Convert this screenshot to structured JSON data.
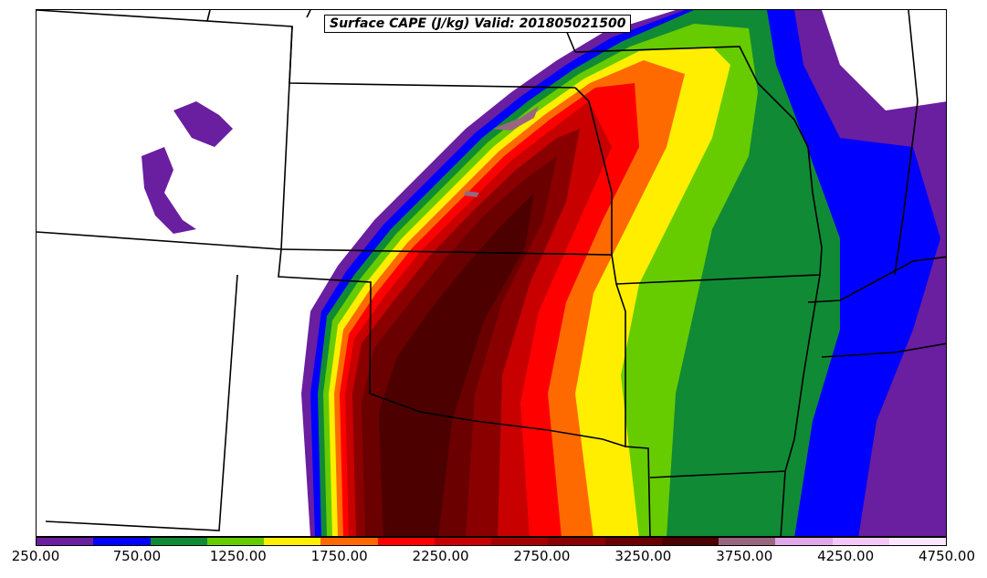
{
  "title": "Surface CAPE (J/kg) Valid: 201805021500",
  "colorbar": {
    "min": 250,
    "max": 4750,
    "step": 250,
    "colors": [
      "#6a1ea0",
      "#0000ff",
      "#118a35",
      "#66cc00",
      "#ffee00",
      "#ff6a00",
      "#ff0000",
      "#c80000",
      "#a50000",
      "#8a0000",
      "#6a0000",
      "#4c0000",
      "#996680",
      "#e0a8e8",
      "#f3c8f8",
      "#fbe6fd"
    ],
    "tick_labels": [
      "250.00",
      "750.00",
      "1250.00",
      "1750.00",
      "2250.00",
      "2750.00",
      "3250.00",
      "3750.00",
      "4250.00",
      "4750.00"
    ],
    "tick_values": [
      250,
      750,
      1250,
      1750,
      2250,
      2750,
      3250,
      3750,
      4250,
      4750
    ]
  },
  "chart_data": {
    "type": "heatmap",
    "variable": "Surface CAPE",
    "units": "J/kg",
    "valid_time": "201805021500",
    "levels": [
      250,
      500,
      750,
      1000,
      1250,
      1500,
      1750,
      2000,
      2250,
      2500,
      2750,
      3000,
      3250,
      3500,
      3750,
      4000,
      4250,
      4500,
      4750
    ]
  }
}
